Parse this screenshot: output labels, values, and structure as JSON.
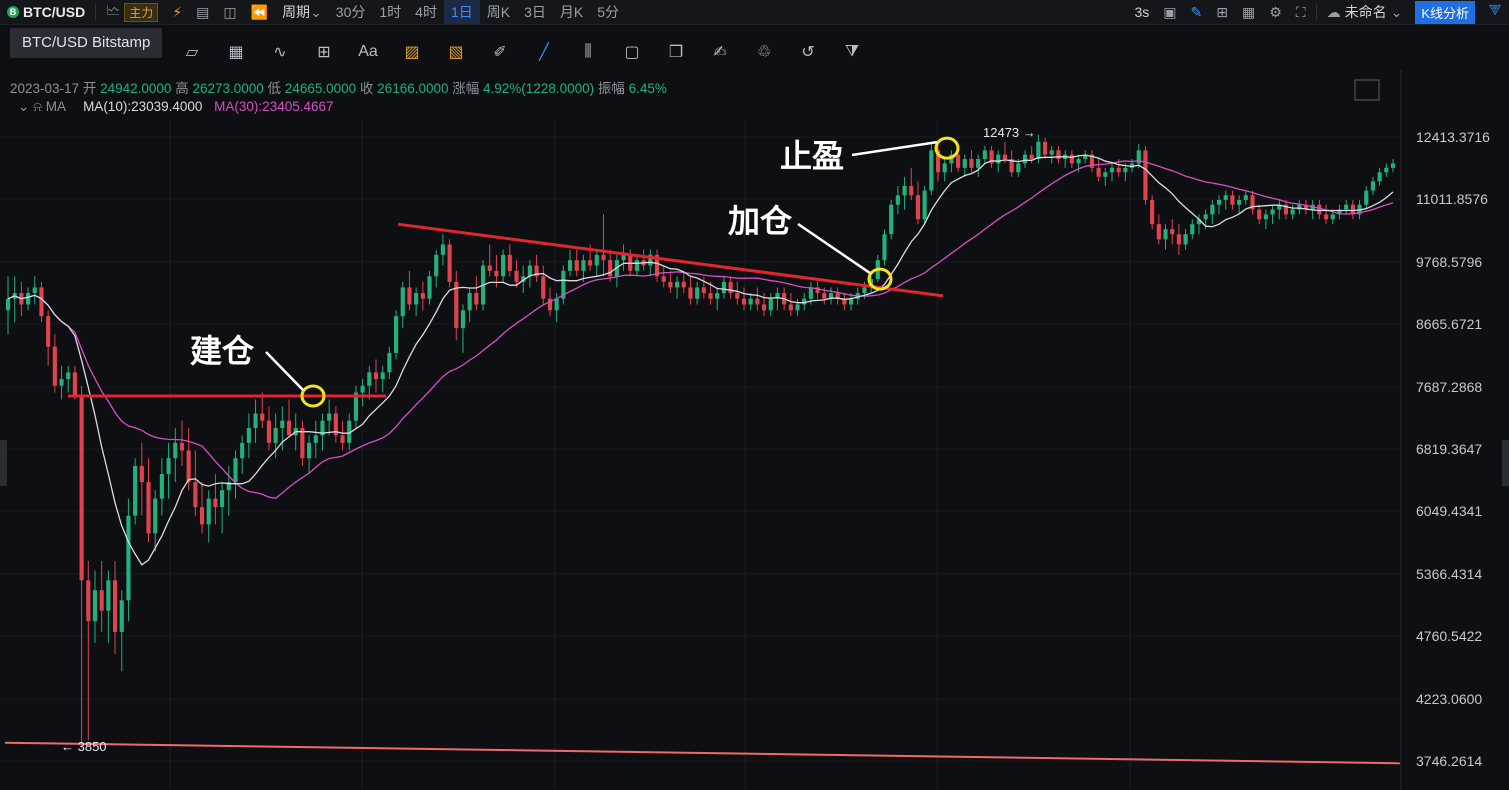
{
  "toolbar": {
    "symbol": "BTC/USD",
    "coin_glyph": "B",
    "main_badge": "主力",
    "period_label": "周期",
    "intervals": [
      "30分",
      "1时",
      "4时",
      "1日",
      "周K",
      "3日",
      "月K",
      "5分"
    ],
    "active_interval": "1日",
    "refresh": "3s",
    "layout_name": "未命名",
    "kline_button": "K线分析",
    "tooltip": "BTC/USD Bitstamp"
  },
  "ohlc": {
    "date": "2023-03-17",
    "open_label": "开",
    "open": "24942.0000",
    "high_label": "高",
    "high": "26273.0000",
    "low_label": "低",
    "low": "24665.0000",
    "close_label": "收",
    "close": "26166.0000",
    "change_label": "涨幅",
    "change": "4.92%(1228.0000)",
    "amplitude_label": "振幅",
    "amplitude": "6.45%"
  },
  "indicators": {
    "name": "MA",
    "ma10": "MA(10):23039.4000",
    "ma30": "MA(30):23405.4667"
  },
  "colors": {
    "up": "#22b07d",
    "down": "#e0434d",
    "ma10": "#d8dbe0",
    "ma30": "#d64fc0",
    "trend": "#e0262e",
    "marker": "#f2e61a",
    "support": "#f06a6a"
  },
  "chart_data": {
    "type": "candlestick",
    "y_ticks": [
      "12413.3716",
      "11011.8576",
      "9768.5796",
      "8665.6721",
      "7687.2868",
      "6819.3647",
      "6049.4341",
      "5366.4314",
      "4760.5422",
      "4223.0600",
      "3746.2614"
    ],
    "max_label": "12473",
    "min_label": "3850",
    "annotations": [
      {
        "text": "建仓",
        "price": 7550
      },
      {
        "text": "加仓",
        "price": 9450
      },
      {
        "text": "止盈",
        "price": 12150
      }
    ],
    "candles": [
      [
        8900,
        9500,
        8500,
        9100
      ],
      [
        9100,
        9500,
        8700,
        9200
      ],
      [
        9200,
        9400,
        8800,
        9000
      ],
      [
        9000,
        9300,
        8900,
        9200
      ],
      [
        9200,
        9500,
        9000,
        9300
      ],
      [
        9300,
        9400,
        8700,
        8800
      ],
      [
        8800,
        8900,
        8000,
        8300
      ],
      [
        8300,
        8500,
        7600,
        7700
      ],
      [
        7700,
        8000,
        7500,
        7800
      ],
      [
        7800,
        8000,
        7600,
        7900
      ],
      [
        7900,
        8000,
        7500,
        7550
      ],
      [
        7550,
        7700,
        3850,
        5300
      ],
      [
        5300,
        5500,
        3900,
        4900
      ],
      [
        4900,
        5400,
        4700,
        5200
      ],
      [
        5200,
        5500,
        4800,
        5000
      ],
      [
        5000,
        5400,
        4700,
        5300
      ],
      [
        5300,
        5500,
        4600,
        4800
      ],
      [
        4800,
        5200,
        4450,
        5100
      ],
      [
        5100,
        6200,
        4900,
        6000
      ],
      [
        6000,
        6700,
        5900,
        6600
      ],
      [
        6600,
        6900,
        6000,
        6400
      ],
      [
        6400,
        6700,
        5700,
        5800
      ],
      [
        5800,
        6300,
        5600,
        6200
      ],
      [
        6200,
        6700,
        6000,
        6500
      ],
      [
        6500,
        6900,
        6200,
        6700
      ],
      [
        6700,
        7100,
        6400,
        6900
      ],
      [
        6900,
        7200,
        6600,
        6800
      ],
      [
        6800,
        7100,
        6300,
        6400
      ],
      [
        6400,
        6800,
        6000,
        6100
      ],
      [
        6100,
        6400,
        5800,
        5900
      ],
      [
        5900,
        6300,
        5700,
        6200
      ],
      [
        6200,
        6500,
        5900,
        6100
      ],
      [
        6100,
        6400,
        5800,
        6300
      ],
      [
        6300,
        6600,
        6000,
        6400
      ],
      [
        6400,
        6800,
        6200,
        6700
      ],
      [
        6700,
        7000,
        6500,
        6900
      ],
      [
        6900,
        7300,
        6700,
        7100
      ],
      [
        7100,
        7500,
        6900,
        7300
      ],
      [
        7300,
        7600,
        7100,
        7200
      ],
      [
        7200,
        7400,
        6800,
        6900
      ],
      [
        6900,
        7300,
        6700,
        7100
      ],
      [
        7100,
        7400,
        6800,
        7200
      ],
      [
        7200,
        7500,
        7000,
        7000
      ],
      [
        7000,
        7300,
        6800,
        7100
      ],
      [
        7100,
        7200,
        6600,
        6700
      ],
      [
        6700,
        7000,
        6500,
        6900
      ],
      [
        6900,
        7200,
        6700,
        7000
      ],
      [
        7000,
        7300,
        6800,
        7200
      ],
      [
        7200,
        7500,
        7000,
        7300
      ],
      [
        7300,
        7400,
        6900,
        7000
      ],
      [
        7000,
        7200,
        6800,
        6900
      ],
      [
        6900,
        7300,
        6800,
        7200
      ],
      [
        7200,
        7700,
        7100,
        7600
      ],
      [
        7600,
        7800,
        7400,
        7700
      ],
      [
        7700,
        8000,
        7500,
        7900
      ],
      [
        7900,
        8100,
        7600,
        7800
      ],
      [
        7800,
        8000,
        7600,
        7900
      ],
      [
        7900,
        8300,
        7800,
        8200
      ],
      [
        8200,
        8900,
        8100,
        8800
      ],
      [
        8800,
        9400,
        8600,
        9300
      ],
      [
        9300,
        9600,
        8900,
        9000
      ],
      [
        9000,
        9300,
        8800,
        9200
      ],
      [
        9200,
        9400,
        8900,
        9100
      ],
      [
        9100,
        9600,
        9000,
        9500
      ],
      [
        9500,
        10000,
        9300,
        9900
      ],
      [
        9900,
        10300,
        9700,
        10100
      ],
      [
        10100,
        10200,
        9300,
        9400
      ],
      [
        9400,
        9600,
        8400,
        8600
      ],
      [
        8600,
        9000,
        8200,
        8900
      ],
      [
        8900,
        9300,
        8700,
        9200
      ],
      [
        9200,
        9500,
        8900,
        9000
      ],
      [
        9000,
        9800,
        8900,
        9700
      ],
      [
        9700,
        10100,
        9500,
        9600
      ],
      [
        9600,
        9900,
        9300,
        9500
      ],
      [
        9500,
        10000,
        9400,
        9900
      ],
      [
        9900,
        10100,
        9500,
        9600
      ],
      [
        9600,
        9800,
        9300,
        9400
      ],
      [
        9400,
        9700,
        9200,
        9500
      ],
      [
        9500,
        9800,
        9300,
        9700
      ],
      [
        9700,
        9900,
        9400,
        9500
      ],
      [
        9500,
        9700,
        9000,
        9100
      ],
      [
        9100,
        9300,
        8800,
        8900
      ],
      [
        8900,
        9200,
        8700,
        9100
      ],
      [
        9100,
        9700,
        9000,
        9600
      ],
      [
        9600,
        10000,
        9500,
        9800
      ],
      [
        9800,
        10000,
        9500,
        9600
      ],
      [
        9600,
        9900,
        9400,
        9800
      ],
      [
        9800,
        10100,
        9600,
        9700
      ],
      [
        9700,
        10000,
        9500,
        9900
      ],
      [
        9900,
        10700,
        9500,
        9800
      ],
      [
        9800,
        10000,
        9400,
        9500
      ],
      [
        9500,
        9900,
        9300,
        9800
      ],
      [
        9800,
        10100,
        9600,
        9900
      ],
      [
        9900,
        10000,
        9500,
        9600
      ],
      [
        9600,
        9900,
        9500,
        9800
      ],
      [
        9800,
        10000,
        9600,
        9700
      ],
      [
        9700,
        10000,
        9500,
        9900
      ],
      [
        9900,
        10000,
        9400,
        9500
      ],
      [
        9500,
        9700,
        9300,
        9400
      ],
      [
        9400,
        9600,
        9200,
        9300
      ],
      [
        9300,
        9500,
        9100,
        9400
      ],
      [
        9400,
        9600,
        9200,
        9300
      ],
      [
        9300,
        9500,
        9000,
        9100
      ],
      [
        9100,
        9400,
        9000,
        9300
      ],
      [
        9300,
        9500,
        9100,
        9200
      ],
      [
        9200,
        9400,
        9000,
        9100
      ],
      [
        9100,
        9300,
        8900,
        9200
      ],
      [
        9200,
        9500,
        9100,
        9400
      ],
      [
        9400,
        9500,
        9100,
        9200
      ],
      [
        9200,
        9400,
        9000,
        9100
      ],
      [
        9100,
        9300,
        8900,
        9000
      ],
      [
        9000,
        9200,
        8900,
        9100
      ],
      [
        9100,
        9300,
        8900,
        9000
      ],
      [
        9000,
        9200,
        8800,
        8900
      ],
      [
        8900,
        9200,
        8800,
        9100
      ],
      [
        9100,
        9300,
        8900,
        9200
      ],
      [
        9200,
        9300,
        8900,
        9000
      ],
      [
        9000,
        9200,
        8800,
        8900
      ],
      [
        8900,
        9100,
        8800,
        9000
      ],
      [
        9000,
        9200,
        8900,
        9100
      ],
      [
        9100,
        9400,
        9000,
        9300
      ],
      [
        9300,
        9400,
        9100,
        9200
      ],
      [
        9200,
        9300,
        9000,
        9100
      ],
      [
        9100,
        9300,
        9000,
        9200
      ],
      [
        9200,
        9300,
        9000,
        9100
      ],
      [
        9100,
        9200,
        8900,
        9000
      ],
      [
        9000,
        9200,
        8900,
        9100
      ],
      [
        9100,
        9300,
        9000,
        9200
      ],
      [
        9200,
        9400,
        9100,
        9300
      ],
      [
        9300,
        9500,
        9200,
        9450
      ],
      [
        9450,
        9900,
        9400,
        9800
      ],
      [
        9800,
        10400,
        9700,
        10300
      ],
      [
        10300,
        11000,
        10200,
        10900
      ],
      [
        10900,
        11300,
        10700,
        11100
      ],
      [
        11100,
        11500,
        10800,
        11300
      ],
      [
        11300,
        11700,
        11000,
        11100
      ],
      [
        11100,
        11400,
        10500,
        10600
      ],
      [
        10600,
        11300,
        10500,
        11200
      ],
      [
        11200,
        12300,
        11100,
        12100
      ],
      [
        12100,
        12300,
        11400,
        11600
      ],
      [
        11600,
        11900,
        11400,
        11800
      ],
      [
        11800,
        12100,
        11600,
        12000
      ],
      [
        12000,
        12200,
        11600,
        11700
      ],
      [
        11700,
        12000,
        11500,
        11900
      ],
      [
        11900,
        12100,
        11600,
        11700
      ],
      [
        11700,
        12000,
        11500,
        11900
      ],
      [
        11900,
        12200,
        11800,
        12100
      ],
      [
        12100,
        12200,
        11700,
        11800
      ],
      [
        11800,
        12100,
        11600,
        12000
      ],
      [
        12000,
        12300,
        11800,
        11900
      ],
      [
        11900,
        12100,
        11500,
        11600
      ],
      [
        11600,
        11900,
        11500,
        11800
      ],
      [
        11800,
        12100,
        11700,
        12000
      ],
      [
        12000,
        12200,
        11800,
        11900
      ],
      [
        11900,
        12473,
        11800,
        12300
      ],
      [
        12300,
        12400,
        11900,
        12000
      ],
      [
        12000,
        12200,
        11800,
        12100
      ],
      [
        12100,
        12200,
        11800,
        11900
      ],
      [
        11900,
        12100,
        11700,
        12000
      ],
      [
        12000,
        12100,
        11700,
        11800
      ],
      [
        11800,
        12000,
        11600,
        11900
      ],
      [
        11900,
        12100,
        11800,
        12000
      ],
      [
        12000,
        12100,
        11600,
        11700
      ],
      [
        11700,
        11900,
        11400,
        11500
      ],
      [
        11500,
        11700,
        11300,
        11600
      ],
      [
        11600,
        11800,
        11400,
        11700
      ],
      [
        11700,
        11900,
        11500,
        11600
      ],
      [
        11600,
        11800,
        11400,
        11700
      ],
      [
        11700,
        11900,
        11600,
        11800
      ],
      [
        11800,
        12250,
        11700,
        12100
      ],
      [
        12100,
        12200,
        10900,
        11000
      ],
      [
        11000,
        11100,
        10400,
        10500
      ],
      [
        10500,
        10700,
        10100,
        10200
      ],
      [
        10200,
        10500,
        10000,
        10400
      ],
      [
        10400,
        10600,
        10100,
        10300
      ],
      [
        10300,
        10500,
        9900,
        10100
      ],
      [
        10100,
        10400,
        10000,
        10300
      ],
      [
        10300,
        10600,
        10200,
        10500
      ],
      [
        10500,
        10700,
        10300,
        10600
      ],
      [
        10600,
        10800,
        10400,
        10700
      ],
      [
        10700,
        11000,
        10500,
        10900
      ],
      [
        10900,
        11100,
        10700,
        11000
      ],
      [
        11000,
        11200,
        10800,
        11100
      ],
      [
        11100,
        11200,
        10800,
        10900
      ],
      [
        10900,
        11100,
        10700,
        11000
      ],
      [
        11000,
        11200,
        10900,
        11100
      ],
      [
        11100,
        11200,
        10700,
        10800
      ],
      [
        10800,
        10900,
        10500,
        10600
      ],
      [
        10600,
        10800,
        10400,
        10700
      ],
      [
        10700,
        10900,
        10500,
        10800
      ],
      [
        10800,
        11000,
        10600,
        10900
      ],
      [
        10900,
        11000,
        10600,
        10700
      ],
      [
        10700,
        10900,
        10600,
        10800
      ],
      [
        10800,
        11000,
        10700,
        10900
      ],
      [
        10900,
        11000,
        10700,
        10800
      ],
      [
        10800,
        11000,
        10600,
        10900
      ],
      [
        10900,
        11000,
        10600,
        10700
      ],
      [
        10700,
        10900,
        10500,
        10600
      ],
      [
        10600,
        10800,
        10500,
        10700
      ],
      [
        10700,
        10900,
        10600,
        10800
      ],
      [
        10800,
        11000,
        10700,
        10900
      ],
      [
        10900,
        11000,
        10600,
        10700
      ],
      [
        10700,
        11000,
        10600,
        10900
      ],
      [
        10900,
        11300,
        10800,
        11200
      ],
      [
        11200,
        11500,
        11100,
        11400
      ],
      [
        11400,
        11700,
        11300,
        11600
      ],
      [
        11600,
        11800,
        11500,
        11700
      ],
      [
        11700,
        11900,
        11600,
        11800
      ]
    ]
  }
}
